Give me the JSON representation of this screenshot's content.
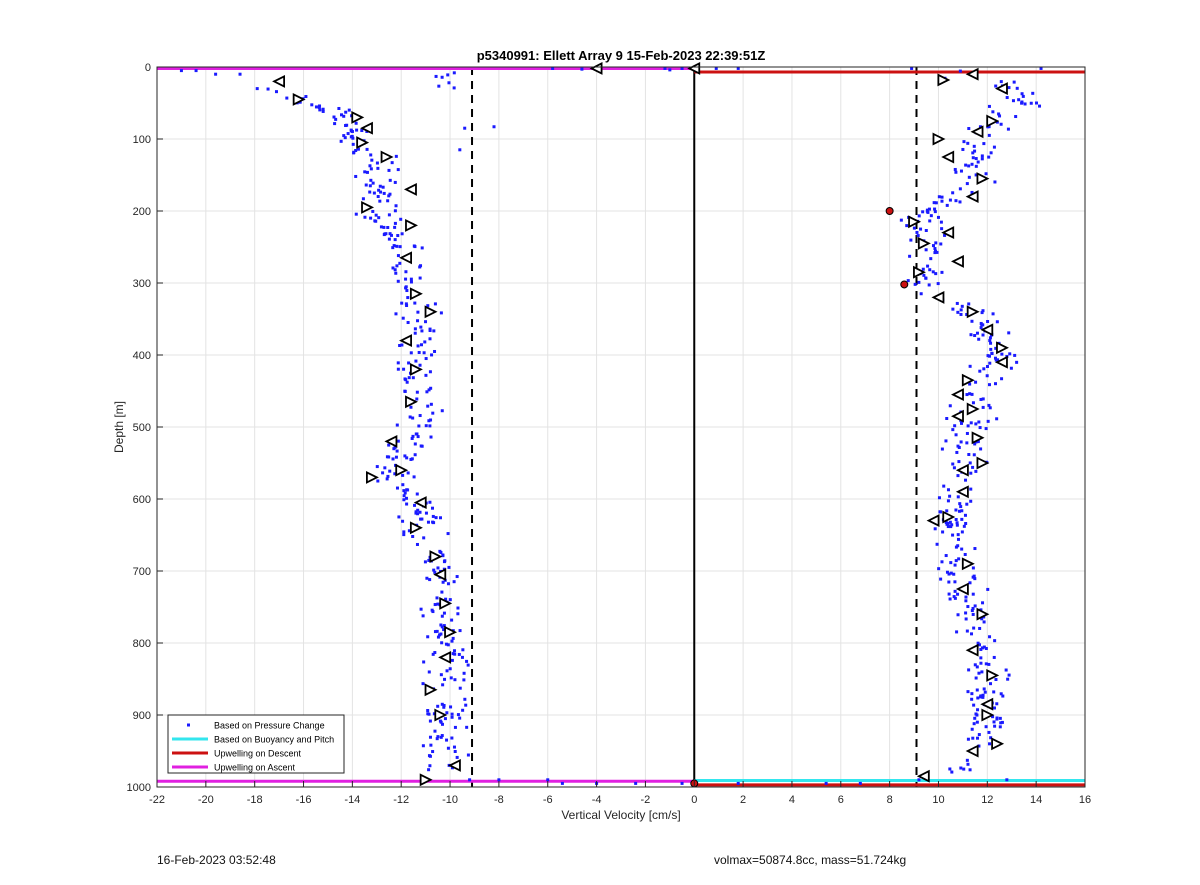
{
  "chart_data": {
    "type": "scatter",
    "title": "p5340991: Ellett Array 9 15-Feb-2023 22:39:51Z",
    "xlabel": "Vertical Velocity [cm/s]",
    "ylabel": "Depth [m]",
    "xlim": [
      -22,
      16
    ],
    "ylim": [
      0,
      1000
    ],
    "y_reversed": true,
    "grid": true,
    "legend_position": "bottom-left",
    "xticks": [
      -22,
      -20,
      -18,
      -16,
      -14,
      -12,
      -10,
      -8,
      -6,
      -4,
      -2,
      0,
      2,
      4,
      6,
      8,
      10,
      12,
      14,
      16
    ],
    "yticks": [
      0,
      100,
      200,
      300,
      400,
      500,
      600,
      700,
      800,
      900,
      1000
    ],
    "legend": [
      {
        "name": "Based on Pressure Change",
        "color": "#1a1aff",
        "style": "dot"
      },
      {
        "name": "Based on Buoyancy and Pitch",
        "color": "#33e6ee",
        "style": "line"
      },
      {
        "name": "Upwelling on Descent",
        "color": "#cc1111",
        "style": "line"
      },
      {
        "name": "Upwelling on Ascent",
        "color": "#e020e0",
        "style": "line"
      }
    ],
    "descent_track": [
      [
        -17.5,
        30
      ],
      [
        -16.5,
        40
      ],
      [
        -15,
        60
      ],
      [
        -14,
        80
      ],
      [
        -13.8,
        100
      ],
      [
        -13.2,
        130
      ],
      [
        -12.8,
        150
      ],
      [
        -13,
        170
      ],
      [
        -13.5,
        195
      ],
      [
        -12.5,
        220
      ],
      [
        -12,
        250
      ],
      [
        -12.3,
        270
      ],
      [
        -11.8,
        300
      ],
      [
        -11.5,
        320
      ],
      [
        -11.2,
        345
      ],
      [
        -11.5,
        375
      ],
      [
        -11.4,
        410
      ],
      [
        -11.2,
        440
      ],
      [
        -11.3,
        470
      ],
      [
        -11.2,
        495
      ],
      [
        -11.8,
        520
      ],
      [
        -12.6,
        560
      ],
      [
        -11.8,
        580
      ],
      [
        -11.2,
        610
      ],
      [
        -11.3,
        640
      ],
      [
        -10.5,
        670
      ],
      [
        -10.3,
        700
      ],
      [
        -10.1,
        740
      ],
      [
        -10.0,
        780
      ],
      [
        -10.3,
        820
      ],
      [
        -10.3,
        860
      ],
      [
        -10.5,
        900
      ],
      [
        -10,
        940
      ],
      [
        -10,
        970
      ]
    ],
    "ascent_track": [
      [
        11.2,
        10
      ],
      [
        12,
        35
      ],
      [
        11.5,
        60
      ],
      [
        12,
        80
      ],
      [
        11.6,
        100
      ],
      [
        11,
        130
      ],
      [
        11.8,
        160
      ],
      [
        11,
        180
      ],
      [
        9.5,
        200
      ],
      [
        9.2,
        230
      ],
      [
        9.8,
        260
      ],
      [
        9.5,
        290
      ],
      [
        9.0,
        305
      ],
      [
        10.2,
        320
      ],
      [
        11.5,
        345
      ],
      [
        12.4,
        375
      ],
      [
        12.5,
        410
      ],
      [
        11.6,
        440
      ],
      [
        11.3,
        470
      ],
      [
        11.2,
        500
      ],
      [
        11.5,
        530
      ],
      [
        11.0,
        560
      ],
      [
        10.8,
        590
      ],
      [
        10.3,
        620
      ],
      [
        10.1,
        650
      ],
      [
        10.6,
        690
      ],
      [
        10.8,
        730
      ],
      [
        11.8,
        760
      ],
      [
        11.6,
        800
      ],
      [
        12.2,
        840
      ],
      [
        12,
        870
      ],
      [
        12,
        900
      ],
      [
        11.7,
        940
      ],
      [
        10.6,
        975
      ]
    ],
    "pressure_change_outliers": [
      [
        -21,
        5
      ],
      [
        -20.4,
        5
      ],
      [
        -19.6,
        10
      ],
      [
        -18.6,
        10
      ],
      [
        -9.4,
        85
      ],
      [
        -8.2,
        83
      ],
      [
        -9.6,
        115
      ],
      [
        -5.8,
        2
      ],
      [
        -4.6,
        3
      ],
      [
        -1.2,
        2
      ],
      [
        -1.0,
        4
      ],
      [
        -0.5,
        2
      ],
      [
        0.9,
        2
      ],
      [
        1.8,
        2
      ],
      [
        8.9,
        2
      ],
      [
        14.2,
        2
      ],
      [
        -9.2,
        990
      ],
      [
        -8.0,
        990
      ],
      [
        -6.0,
        990
      ],
      [
        -5.4,
        995
      ],
      [
        -4.0,
        995
      ],
      [
        -2.4,
        995
      ],
      [
        -0.5,
        995
      ],
      [
        1.8,
        995
      ],
      [
        5.4,
        995
      ],
      [
        6.8,
        995
      ],
      [
        9.2,
        990
      ],
      [
        12.8,
        990
      ]
    ],
    "descent_markers": [
      [
        -17,
        20
      ],
      [
        -16.2,
        45
      ],
      [
        -13.8,
        70
      ],
      [
        -13.4,
        85
      ],
      [
        -13.6,
        105
      ],
      [
        -12.6,
        125
      ],
      [
        -11.6,
        170
      ],
      [
        -13.4,
        195
      ],
      [
        -11.6,
        220
      ],
      [
        -11.8,
        265
      ],
      [
        -11.4,
        315
      ],
      [
        -10.8,
        340
      ],
      [
        -11.8,
        380
      ],
      [
        -11.4,
        420
      ],
      [
        -11.6,
        465
      ],
      [
        -12.4,
        520
      ],
      [
        -12.0,
        560
      ],
      [
        -13.2,
        570
      ],
      [
        -11.2,
        605
      ],
      [
        -11.4,
        640
      ],
      [
        -10.6,
        680
      ],
      [
        -10.4,
        705
      ],
      [
        -10.2,
        745
      ],
      [
        -10.0,
        785
      ],
      [
        -10.2,
        820
      ],
      [
        -10.8,
        865
      ],
      [
        -10.4,
        900
      ],
      [
        -9.8,
        970
      ],
      [
        -11.0,
        990
      ]
    ],
    "ascent_markers": [
      [
        11.4,
        10
      ],
      [
        10.2,
        18
      ],
      [
        12.6,
        30
      ],
      [
        12.2,
        75
      ],
      [
        11.6,
        90
      ],
      [
        10.0,
        100
      ],
      [
        10.4,
        125
      ],
      [
        11.8,
        155
      ],
      [
        11.4,
        180
      ],
      [
        9.0,
        215
      ],
      [
        10.4,
        230
      ],
      [
        9.4,
        245
      ],
      [
        10.8,
        270
      ],
      [
        9.2,
        285
      ],
      [
        10.0,
        320
      ],
      [
        11.4,
        340
      ],
      [
        12.0,
        365
      ],
      [
        12.6,
        390
      ],
      [
        12.6,
        410
      ],
      [
        11.2,
        435
      ],
      [
        10.8,
        455
      ],
      [
        11.4,
        475
      ],
      [
        10.8,
        485
      ],
      [
        11.6,
        515
      ],
      [
        11.0,
        560
      ],
      [
        11.8,
        550
      ],
      [
        11.0,
        590
      ],
      [
        10.4,
        625
      ],
      [
        9.8,
        630
      ],
      [
        11.2,
        690
      ],
      [
        11.0,
        725
      ],
      [
        11.8,
        760
      ],
      [
        11.4,
        810
      ],
      [
        12.2,
        845
      ],
      [
        12.0,
        885
      ],
      [
        12.0,
        900
      ],
      [
        11.4,
        950
      ],
      [
        12.4,
        940
      ],
      [
        9.4,
        985
      ]
    ],
    "pressure_change_descent_center": [
      [
        -17.5,
        30
      ],
      [
        -15,
        60
      ],
      [
        -13.8,
        90
      ],
      [
        -13,
        130
      ],
      [
        -13,
        170
      ],
      [
        -12.8,
        210
      ],
      [
        -12,
        250
      ],
      [
        -11.8,
        300
      ],
      [
        -11.3,
        350
      ],
      [
        -11.4,
        420
      ],
      [
        -11.3,
        490
      ],
      [
        -12.2,
        560
      ],
      [
        -11.2,
        620
      ],
      [
        -10.4,
        700
      ],
      [
        -10.1,
        780
      ],
      [
        -10.3,
        850
      ],
      [
        -10.1,
        930
      ],
      [
        -10.2,
        975
      ]
    ],
    "pressure_change_ascent_center": [
      [
        12.2,
        20
      ],
      [
        13.5,
        45
      ],
      [
        11.4,
        100
      ],
      [
        11.4,
        160
      ],
      [
        9.4,
        210
      ],
      [
        9.6,
        270
      ],
      [
        9.4,
        300
      ],
      [
        11.5,
        340
      ],
      [
        12.4,
        400
      ],
      [
        11.4,
        470
      ],
      [
        11.2,
        540
      ],
      [
        10.5,
        620
      ],
      [
        10.7,
        700
      ],
      [
        11.6,
        770
      ],
      [
        12,
        850
      ],
      [
        11.8,
        930
      ],
      [
        10.8,
        975
      ]
    ],
    "highlighted_points": [
      [
        8.0,
        200
      ],
      [
        8.6,
        302
      ],
      [
        0.0,
        995
      ]
    ],
    "descent_reference_line_x": -9.1,
    "ascent_reference_line_x": 9.1,
    "zero_line_x": 0,
    "descent_surface_line": {
      "x": [
        -22,
        0
      ],
      "y": 2
    },
    "descent_bottom_line": {
      "x": [
        -22,
        0
      ],
      "y": 992
    },
    "ascent_surface_line": {
      "x": [
        0,
        16
      ],
      "y": 7
    },
    "ascent_bottom_cyan": {
      "x": [
        0,
        16
      ],
      "y": 991
    },
    "ascent_bottom_red": {
      "x": [
        0,
        16
      ],
      "y": 997
    }
  },
  "footer": {
    "timestamp": "16-Feb-2023 03:52:48",
    "metrics": "volmax=50874.8cc, mass=51.724kg"
  }
}
